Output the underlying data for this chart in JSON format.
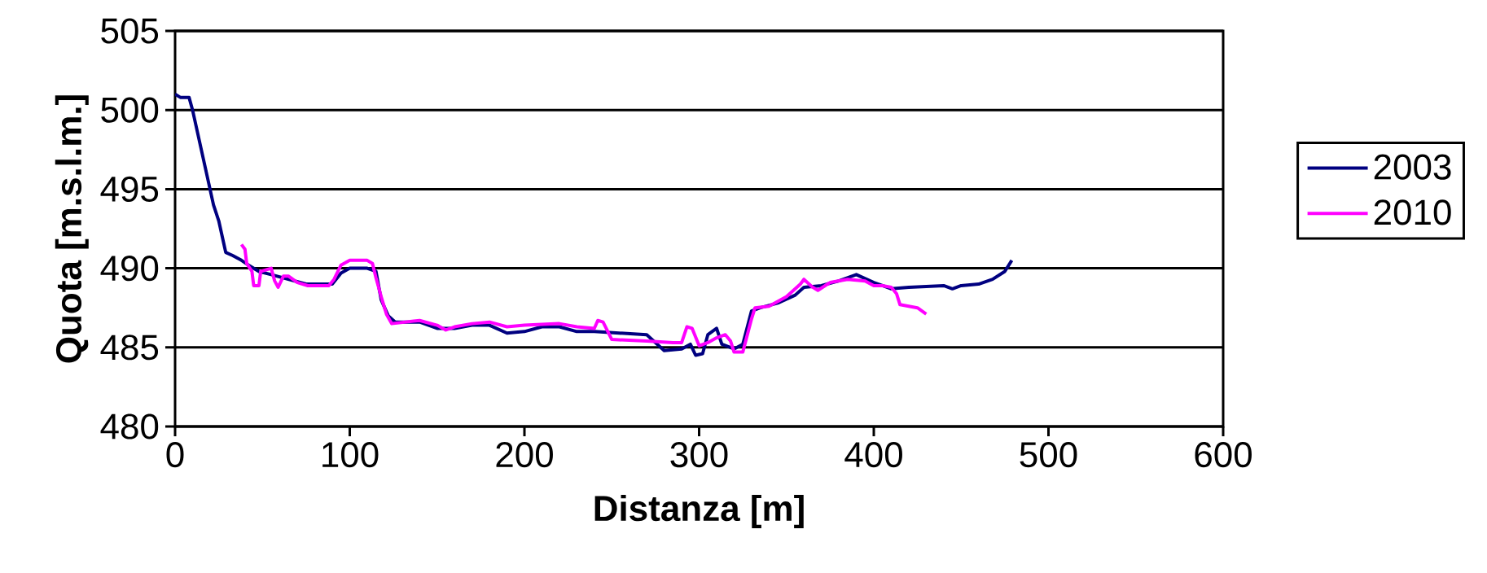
{
  "chart_data": {
    "type": "line",
    "xlabel": "Distanza [m]",
    "ylabel": "Quota [m.s.l.m.]",
    "xlim": [
      0,
      600
    ],
    "xticks": [
      0,
      100,
      200,
      300,
      400,
      500,
      600
    ],
    "ylim": [
      480,
      505
    ],
    "yticks": [
      480,
      485,
      490,
      495,
      500,
      505
    ],
    "grid": "y",
    "legend": "right",
    "marker": "none",
    "line_style": "solid",
    "series": [
      {
        "name": "2003",
        "color": "#000080",
        "x": [
          0,
          3,
          8,
          10,
          12,
          14,
          16,
          18,
          20,
          22,
          25,
          27,
          29,
          33,
          38,
          42,
          48,
          55,
          65,
          75,
          90,
          95,
          100,
          110,
          115,
          118,
          122,
          126,
          140,
          150,
          160,
          170,
          180,
          190,
          200,
          210,
          220,
          230,
          240,
          270,
          275,
          280,
          290,
          295,
          298,
          302,
          305,
          310,
          313,
          320,
          325,
          330,
          335,
          345,
          355,
          360,
          370,
          380,
          390,
          400,
          405,
          410,
          420,
          440,
          445,
          450,
          460,
          468,
          475,
          479
        ],
        "values": [
          501,
          500.8,
          500.8,
          500,
          499,
          498,
          497,
          496,
          495,
          494,
          493,
          492,
          491,
          490.8,
          490.5,
          490.2,
          489.8,
          489.6,
          489.3,
          489,
          489,
          489.7,
          490,
          490,
          489.8,
          488,
          487,
          486.6,
          486.6,
          486.2,
          486.2,
          486.4,
          486.4,
          485.9,
          486,
          486.3,
          486.3,
          486,
          486,
          485.8,
          485.3,
          484.8,
          484.9,
          485.2,
          484.5,
          484.6,
          485.8,
          486.2,
          485.2,
          484.9,
          485.2,
          487.3,
          487.5,
          487.8,
          488.3,
          488.8,
          488.9,
          489.2,
          489.6,
          489.1,
          488.9,
          488.7,
          488.8,
          488.9,
          488.7,
          488.9,
          489,
          489.3,
          489.8,
          490.5
        ]
      },
      {
        "name": "2010",
        "color": "#ff00ff",
        "x": [
          38,
          40,
          41,
          44,
          45,
          48,
          49,
          55,
          57,
          59,
          62,
          65,
          70,
          76,
          88,
          91,
          95,
          100,
          110,
          113,
          115,
          118,
          121,
          124,
          140,
          150,
          155,
          160,
          170,
          180,
          190,
          200,
          220,
          230,
          240,
          242,
          245,
          250,
          270,
          285,
          290,
          293,
          296,
          300,
          305,
          310,
          315,
          318,
          320,
          325,
          330,
          332,
          340,
          350,
          358,
          360,
          365,
          368,
          375,
          385,
          395,
          400,
          405,
          410,
          413,
          415,
          425,
          430
        ],
        "values": [
          491.5,
          491.2,
          490.3,
          489.8,
          488.9,
          488.9,
          489.8,
          490,
          489.2,
          488.8,
          489.5,
          489.5,
          489.1,
          488.9,
          488.9,
          489.3,
          490.2,
          490.5,
          490.5,
          490.3,
          489.4,
          488.2,
          487.1,
          486.5,
          486.7,
          486.4,
          486.1,
          486.3,
          486.5,
          486.6,
          486.3,
          486.4,
          486.5,
          486.3,
          486.2,
          486.7,
          486.6,
          485.5,
          485.4,
          485.3,
          485.3,
          486.3,
          486.2,
          485.1,
          485.3,
          485.6,
          485.8,
          485.4,
          484.7,
          484.7,
          486.8,
          487.5,
          487.6,
          488.2,
          489,
          489.3,
          488.8,
          488.6,
          489.1,
          489.3,
          489.2,
          488.9,
          488.9,
          488.8,
          488.4,
          487.7,
          487.5,
          487.1
        ]
      }
    ]
  }
}
